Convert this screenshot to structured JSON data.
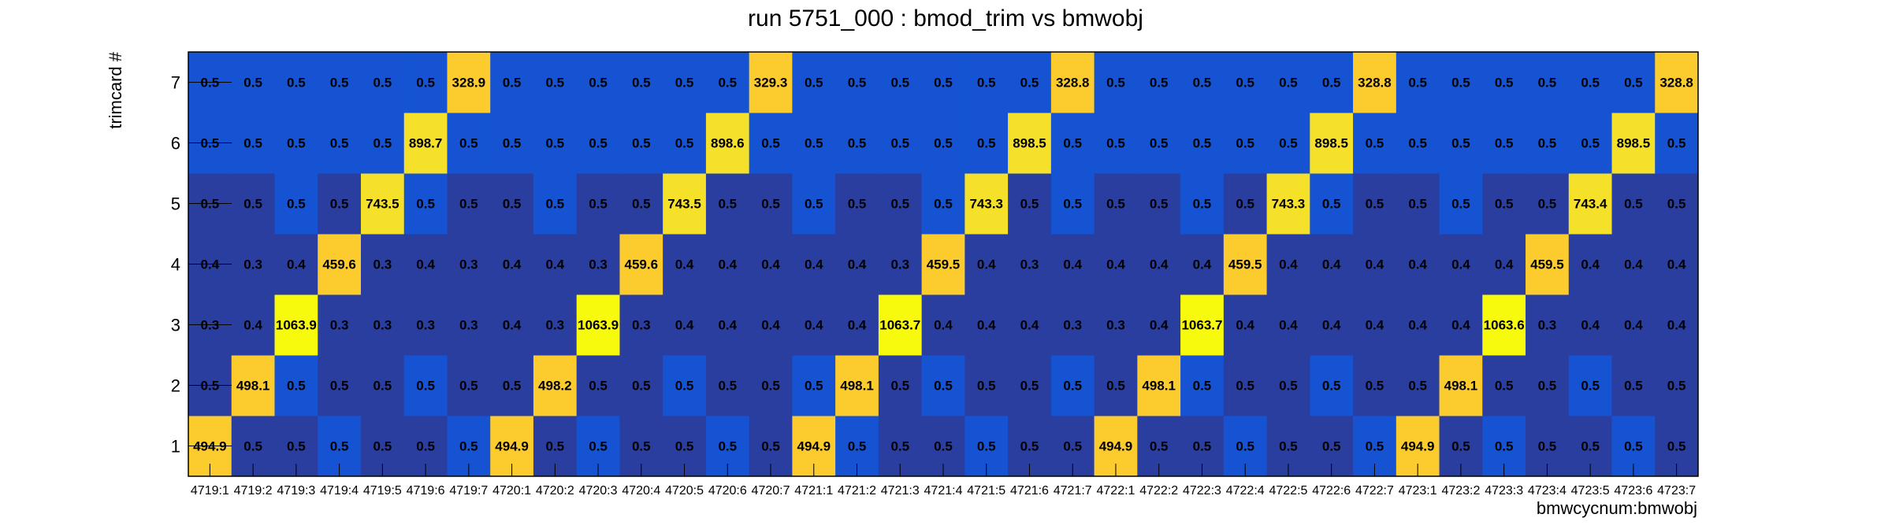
{
  "chart_data": {
    "type": "heatmap",
    "title": "run 5751_000 : bmod_trim vs bmwobj",
    "xlabel": "bmwcycnum:bmwobj",
    "ylabel": "trimcard #",
    "x_categories": [
      "4719:1",
      "4719:2",
      "4719:3",
      "4719:4",
      "4719:5",
      "4719:6",
      "4719:7",
      "4720:1",
      "4720:2",
      "4720:3",
      "4720:4",
      "4720:5",
      "4720:6",
      "4720:7",
      "4721:1",
      "4721:2",
      "4721:3",
      "4721:4",
      "4721:5",
      "4721:6",
      "4721:7",
      "4722:1",
      "4722:2",
      "4722:3",
      "4722:4",
      "4722:5",
      "4722:6",
      "4722:7",
      "4723:1",
      "4723:2",
      "4723:3",
      "4723:4",
      "4723:5",
      "4723:6",
      "4723:7"
    ],
    "y_categories": [
      "1",
      "2",
      "3",
      "4",
      "5",
      "6",
      "7"
    ],
    "values": [
      [
        "494.9",
        "0.5",
        "0.5",
        "0.5",
        "0.5",
        "0.5",
        "0.5",
        "494.9",
        "0.5",
        "0.5",
        "0.5",
        "0.5",
        "0.5",
        "0.5",
        "494.9",
        "0.5",
        "0.5",
        "0.5",
        "0.5",
        "0.5",
        "0.5",
        "494.9",
        "0.5",
        "0.5",
        "0.5",
        "0.5",
        "0.5",
        "0.5",
        "494.9",
        "0.5",
        "0.5",
        "0.5",
        "0.5",
        "0.5",
        "0.5"
      ],
      [
        "0.5",
        "498.1",
        "0.5",
        "0.5",
        "0.5",
        "0.5",
        "0.5",
        "0.5",
        "498.2",
        "0.5",
        "0.5",
        "0.5",
        "0.5",
        "0.5",
        "0.5",
        "498.1",
        "0.5",
        "0.5",
        "0.5",
        "0.5",
        "0.5",
        "0.5",
        "498.1",
        "0.5",
        "0.5",
        "0.5",
        "0.5",
        "0.5",
        "0.5",
        "498.1",
        "0.5",
        "0.5",
        "0.5",
        "0.5",
        "0.5"
      ],
      [
        "0.3",
        "0.4",
        "1063.9",
        "0.3",
        "0.3",
        "0.3",
        "0.3",
        "0.4",
        "0.3",
        "1063.9",
        "0.3",
        "0.4",
        "0.4",
        "0.4",
        "0.4",
        "0.4",
        "1063.7",
        "0.4",
        "0.4",
        "0.4",
        "0.3",
        "0.3",
        "0.4",
        "1063.7",
        "0.4",
        "0.4",
        "0.4",
        "0.4",
        "0.4",
        "0.4",
        "1063.6",
        "0.3",
        "0.4",
        "0.4",
        "0.4"
      ],
      [
        "0.4",
        "0.3",
        "0.4",
        "459.6",
        "0.3",
        "0.4",
        "0.3",
        "0.4",
        "0.4",
        "0.3",
        "459.6",
        "0.4",
        "0.4",
        "0.4",
        "0.4",
        "0.4",
        "0.3",
        "459.5",
        "0.4",
        "0.3",
        "0.4",
        "0.4",
        "0.4",
        "0.4",
        "459.5",
        "0.4",
        "0.4",
        "0.4",
        "0.4",
        "0.4",
        "0.4",
        "459.5",
        "0.4",
        "0.4",
        "0.4"
      ],
      [
        "0.5",
        "0.5",
        "0.5",
        "0.5",
        "743.5",
        "0.5",
        "0.5",
        "0.5",
        "0.5",
        "0.5",
        "0.5",
        "743.5",
        "0.5",
        "0.5",
        "0.5",
        "0.5",
        "0.5",
        "0.5",
        "743.3",
        "0.5",
        "0.5",
        "0.5",
        "0.5",
        "0.5",
        "0.5",
        "743.3",
        "0.5",
        "0.5",
        "0.5",
        "0.5",
        "0.5",
        "0.5",
        "743.4",
        "0.5",
        "0.5"
      ],
      [
        "0.5",
        "0.5",
        "0.5",
        "0.5",
        "0.5",
        "898.7",
        "0.5",
        "0.5",
        "0.5",
        "0.5",
        "0.5",
        "0.5",
        "898.6",
        "0.5",
        "0.5",
        "0.5",
        "0.5",
        "0.5",
        "0.5",
        "898.5",
        "0.5",
        "0.5",
        "0.5",
        "0.5",
        "0.5",
        "0.5",
        "898.5",
        "0.5",
        "0.5",
        "0.5",
        "0.5",
        "0.5",
        "0.5",
        "898.5",
        "0.5"
      ],
      [
        "0.5",
        "0.5",
        "0.5",
        "0.5",
        "0.5",
        "0.5",
        "328.9",
        "0.5",
        "0.5",
        "0.5",
        "0.5",
        "0.5",
        "0.5",
        "329.3",
        "0.5",
        "0.5",
        "0.5",
        "0.5",
        "0.5",
        "0.5",
        "328.8",
        "0.5",
        "0.5",
        "0.5",
        "0.5",
        "0.5",
        "0.5",
        "328.8",
        "0.5",
        "0.5",
        "0.5",
        "0.5",
        "0.5",
        "0.5",
        "328.8"
      ]
    ],
    "colors": {
      "dark_blue": "#2a3ea0",
      "mid_blue": "#1553d2",
      "yellow": "#f6e12a",
      "amber": "#fccb2e",
      "bright_yellow": "#f8fa0d"
    },
    "legend": "none",
    "grid": false
  }
}
